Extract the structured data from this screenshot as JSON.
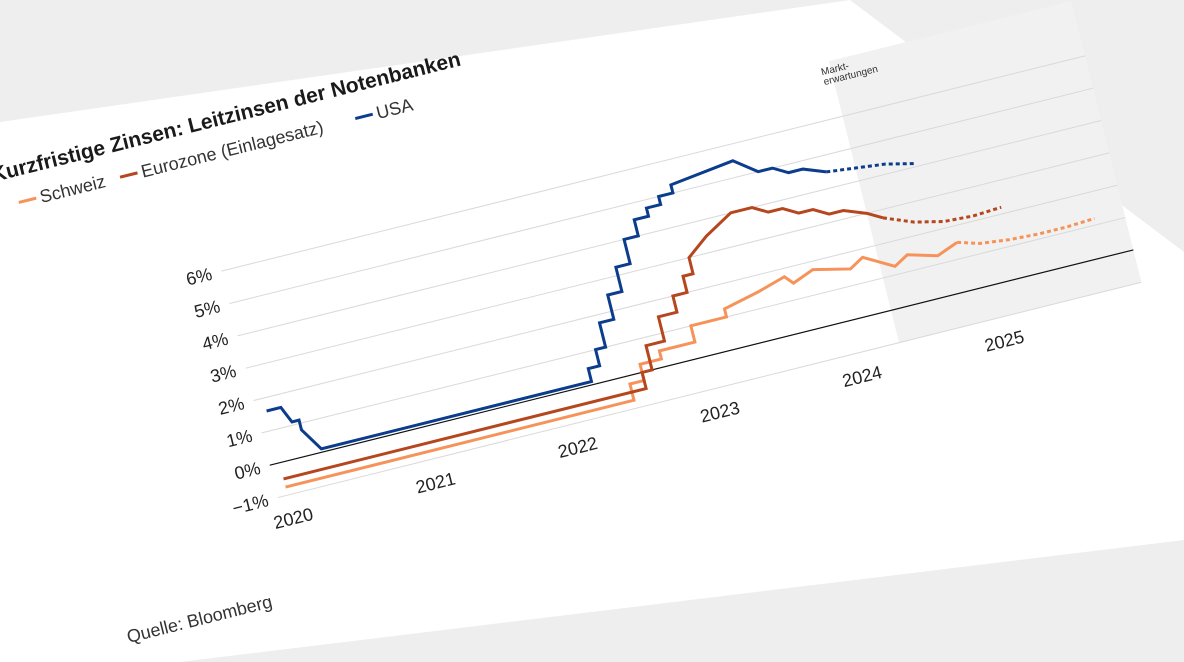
{
  "chart_data": {
    "type": "line",
    "title": "Kurzfristige Zinsen: Leitzinsen der Notenbanken",
    "source": "Quelle: Bloomberg",
    "market_expectations_label": [
      "Markt-",
      "erwartungen"
    ],
    "y_ticks": [
      "6%",
      "5%",
      "4%",
      "3%",
      "2%",
      "1%",
      "0%",
      "−1%"
    ],
    "ylim": [
      -1,
      6.8
    ],
    "x_ticks": [
      "2020",
      "2021",
      "2022",
      "2023",
      "2024",
      "2025"
    ],
    "xlim": [
      2020.0,
      2025.8
    ],
    "forecast_start": 2024.3,
    "grid": true,
    "legend_position": "top-left",
    "series": [
      {
        "name": "Schweiz",
        "color": "#f5935a",
        "x": [
          2020.0,
          2022.45,
          2022.45,
          2022.55,
          2022.55,
          2022.7,
          2022.7,
          2022.95,
          2022.95,
          2023.2,
          2023.2,
          2023.45,
          2023.65,
          2023.7,
          2023.85,
          2024.1,
          2024.2,
          2024.4,
          2024.5,
          2024.7,
          2024.85
        ],
        "y": [
          -0.75,
          -0.75,
          -0.25,
          -0.25,
          0.25,
          0.25,
          0.5,
          0.5,
          1.0,
          1.0,
          1.25,
          1.5,
          1.75,
          1.5,
          1.75,
          1.5,
          1.75,
          1.25,
          1.5,
          1.25,
          1.5
        ],
        "forecast_x": [
          2024.85,
          2025.0,
          2025.2,
          2025.4,
          2025.6,
          2025.8
        ],
        "forecast_y": [
          1.5,
          1.3,
          1.2,
          1.15,
          1.15,
          1.2
        ]
      },
      {
        "name": "Eurozone (Einlagesatz)",
        "color": "#b5461d",
        "x": [
          2020.0,
          2022.55,
          2022.55,
          2022.62,
          2022.62,
          2022.75,
          2022.75,
          2022.88,
          2022.88,
          2022.98,
          2022.98,
          2023.05,
          2023.05,
          2023.2,
          2023.4,
          2023.55,
          2023.65,
          2023.75,
          2023.85,
          2023.95,
          2024.05,
          2024.15,
          2024.3,
          2024.4
        ],
        "y": [
          -0.5,
          -0.5,
          0.0,
          0.0,
          0.75,
          0.75,
          1.5,
          1.5,
          2.0,
          2.0,
          2.5,
          2.5,
          3.0,
          3.5,
          4.0,
          4.0,
          3.75,
          3.75,
          3.5,
          3.5,
          3.25,
          3.25,
          3.0,
          2.75
        ],
        "forecast_x": [
          2024.4,
          2024.6,
          2024.8,
          2025.0,
          2025.2
        ],
        "forecast_y": [
          2.75,
          2.4,
          2.2,
          2.15,
          2.2
        ]
      },
      {
        "name": "USA",
        "color": "#0b3d8c",
        "x": [
          2020.0,
          2020.1,
          2020.15,
          2020.2,
          2020.2,
          2020.3,
          2022.2,
          2022.2,
          2022.28,
          2022.28,
          2022.35,
          2022.35,
          2022.45,
          2022.45,
          2022.55,
          2022.55,
          2022.65,
          2022.65,
          2022.75,
          2022.75,
          2022.85,
          2022.85,
          2022.95,
          2022.95,
          2023.05,
          2023.05,
          2023.5,
          2023.65,
          2023.75,
          2023.85,
          2023.95,
          2024.1
        ],
        "y": [
          1.6,
          1.6,
          1.1,
          1.1,
          0.8,
          0.1,
          0.1,
          0.5,
          0.5,
          1.0,
          1.0,
          1.75,
          1.75,
          2.5,
          2.5,
          3.25,
          3.25,
          4.0,
          4.0,
          4.5,
          4.5,
          4.75,
          4.75,
          5.0,
          5.0,
          5.25,
          5.5,
          5.0,
          5.0,
          4.75,
          4.75,
          4.5
        ],
        "forecast_x": [
          2024.1,
          2024.3,
          2024.5,
          2024.7
        ],
        "forecast_y": [
          4.5,
          4.4,
          4.3,
          4.1
        ]
      }
    ]
  }
}
